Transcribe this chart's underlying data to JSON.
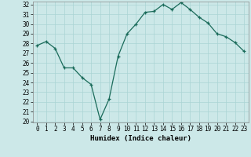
{
  "x": [
    0,
    1,
    2,
    3,
    4,
    5,
    6,
    7,
    8,
    9,
    10,
    11,
    12,
    13,
    14,
    15,
    16,
    17,
    18,
    19,
    20,
    21,
    22,
    23
  ],
  "y": [
    27.8,
    28.2,
    27.5,
    25.5,
    25.5,
    24.5,
    23.8,
    20.2,
    22.3,
    26.7,
    29.0,
    30.0,
    31.2,
    31.3,
    32.0,
    31.5,
    32.2,
    31.5,
    30.7,
    30.1,
    29.0,
    28.7,
    28.1,
    27.2
  ],
  "xlabel": "Humidex (Indice chaleur)",
  "line_color": "#1a6b5a",
  "bg_color": "#cce8e8",
  "grid_color": "#aad4d4",
  "ylim": [
    20,
    32
  ],
  "xlim": [
    -0.5,
    23.5
  ],
  "yticks": [
    20,
    21,
    22,
    23,
    24,
    25,
    26,
    27,
    28,
    29,
    30,
    31,
    32
  ],
  "xtick_labels": [
    "0",
    "1",
    "2",
    "3",
    "4",
    "5",
    "6",
    "7",
    "8",
    "9",
    "10",
    "11",
    "12",
    "13",
    "14",
    "15",
    "16",
    "17",
    "18",
    "19",
    "20",
    "21",
    "22",
    "23"
  ],
  "tick_fontsize": 5.5,
  "xlabel_fontsize": 6.5
}
